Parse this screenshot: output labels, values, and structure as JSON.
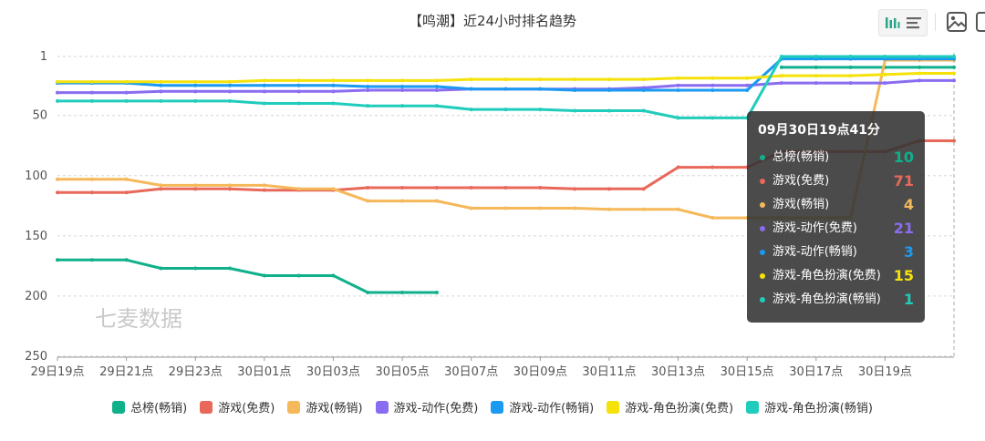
{
  "chart_data": {
    "type": "line",
    "title": "【鸣潮】近24小时排名趋势",
    "watermark": "七麦数据",
    "y_axis": {
      "inverse": true,
      "min": 1,
      "max": 250,
      "ticks": [
        "1",
        "50",
        "100",
        "150",
        "200",
        "250"
      ],
      "tick_values": [
        1,
        50,
        100,
        150,
        200,
        250
      ],
      "grid": "dashed"
    },
    "x_labels": [
      "29日19点",
      "29日21点",
      "29日23点",
      "30日01点",
      "30日03点",
      "30日05点",
      "30日07点",
      "30日09点",
      "30日11点",
      "30日13点",
      "30日15点",
      "30日17点",
      "30日19点"
    ],
    "x_count": 27,
    "legend_position": "bottom",
    "series": [
      {
        "name": "总榜(畅销)",
        "color": "#10b08a",
        "values": [
          170,
          170,
          170,
          177,
          177,
          177,
          183,
          183,
          183,
          197,
          197,
          197,
          null,
          null,
          null,
          null,
          null,
          null,
          null,
          null,
          null,
          10,
          10,
          10,
          10,
          10,
          10
        ]
      },
      {
        "name": "游戏(免费)",
        "color": "#e8685a",
        "values": [
          114,
          114,
          114,
          111,
          111,
          111,
          112,
          112,
          112,
          110,
          110,
          110,
          110,
          110,
          110,
          111,
          111,
          111,
          93,
          93,
          93,
          80,
          80,
          80,
          80,
          71,
          71
        ]
      },
      {
        "name": "游戏(畅销)",
        "color": "#f5b85a",
        "values": [
          103,
          103,
          103,
          108,
          108,
          108,
          108,
          111,
          111,
          121,
          121,
          121,
          127,
          127,
          127,
          127,
          128,
          128,
          128,
          135,
          135,
          135,
          135,
          135,
          4,
          4,
          4
        ]
      },
      {
        "name": "游戏-动作(免费)",
        "color": "#8a6cf0",
        "values": [
          31,
          31,
          31,
          30,
          30,
          30,
          30,
          30,
          30,
          29,
          29,
          29,
          28,
          28,
          28,
          28,
          28,
          27,
          25,
          25,
          25,
          23,
          23,
          23,
          23,
          21,
          21
        ]
      },
      {
        "name": "游戏-动作(畅销)",
        "color": "#1a9af0",
        "values": [
          23,
          23,
          23,
          25,
          25,
          25,
          25,
          25,
          25,
          26,
          26,
          26,
          28,
          28,
          28,
          29,
          29,
          29,
          29,
          29,
          29,
          3,
          3,
          3,
          3,
          3,
          3
        ]
      },
      {
        "name": "游戏-角色扮演(免费)",
        "color": "#f5e20a",
        "values": [
          22,
          22,
          22,
          22,
          22,
          22,
          21,
          21,
          21,
          21,
          21,
          21,
          20,
          20,
          20,
          20,
          20,
          20,
          19,
          19,
          19,
          17,
          17,
          17,
          16,
          15,
          15
        ]
      },
      {
        "name": "游戏-角色扮演(畅销)",
        "color": "#20ccbc",
        "values": [
          38,
          38,
          38,
          38,
          38,
          38,
          40,
          40,
          40,
          42,
          42,
          42,
          45,
          45,
          45,
          46,
          46,
          46,
          52,
          52,
          52,
          1,
          1,
          1,
          1,
          1,
          1
        ]
      }
    ]
  },
  "tooltip": {
    "title": "09月30日19点41分",
    "rows": [
      {
        "name": "总榜(畅销)",
        "value": "10",
        "color": "#10b08a"
      },
      {
        "name": "游戏(免费)",
        "value": "71",
        "color": "#e8685a"
      },
      {
        "name": "游戏(畅销)",
        "value": "4",
        "color": "#f5b85a"
      },
      {
        "name": "游戏-动作(免费)",
        "value": "21",
        "color": "#8a6cf0"
      },
      {
        "name": "游戏-动作(畅销)",
        "value": "3",
        "color": "#1a9af0"
      },
      {
        "name": "游戏-角色扮演(免费)",
        "value": "15",
        "color": "#f5e20a"
      },
      {
        "name": "游戏-角色扮演(畅销)",
        "value": "1",
        "color": "#20ccbc"
      }
    ]
  },
  "toolbar": {
    "icons": [
      "bar-chart-icon",
      "list-icon",
      "image-download-icon",
      "crop-icon"
    ]
  }
}
